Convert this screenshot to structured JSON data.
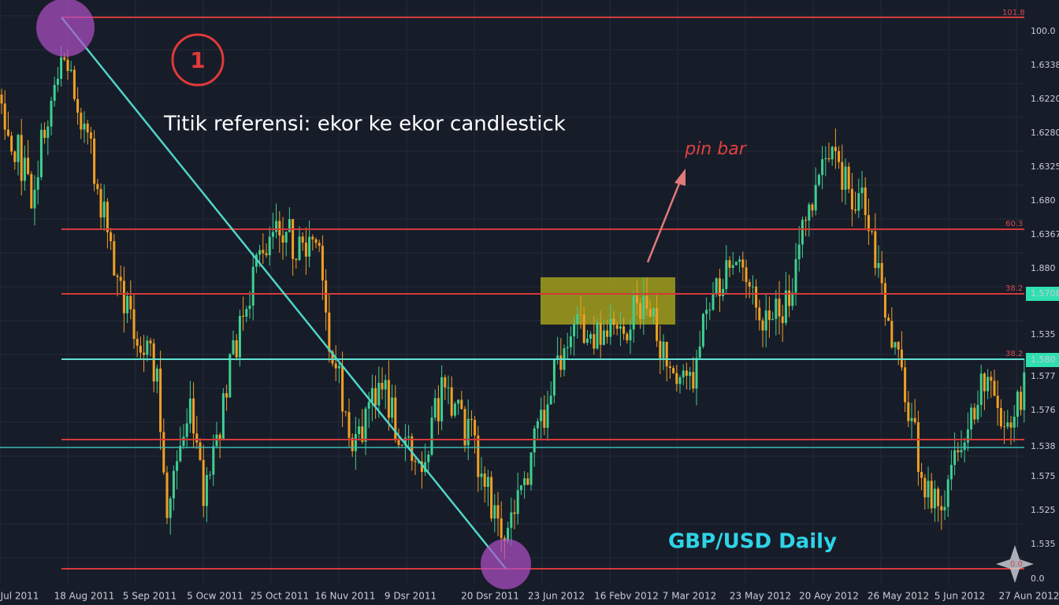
{
  "annotations": {
    "step": "1",
    "reference": "Titik referensi: ekor ke ekor candlestick",
    "pin_bar": "pin bar",
    "pair": "GBP/USD  Daily"
  },
  "price_labels": [
    "100.0",
    "1.6338",
    "1.6220",
    "1.6280",
    "1.6325",
    "1.680",
    "1.6367",
    "1.880",
    "1.5708",
    "1.535",
    "1.580",
    "1.577",
    "1.576",
    "1.538",
    "1.575",
    "1.525",
    "1.535",
    "0.0"
  ],
  "fib_labels": [
    "101.8",
    "60.3",
    "38.2",
    "38.2",
    "0.0"
  ],
  "dates": [
    "Jul 2011",
    "18 Aug 2011",
    "5 Sep 2011",
    "5 Ocw 2011",
    "25 Oct 2011",
    "16 Nuv 2011",
    "9 Dsr 2011",
    "20 Dsr 2011",
    "23 Jun 2012",
    "16 Febv 2012",
    "7 Mar 2012",
    "23 May 2012",
    "20 Aoy 2012",
    "26 May 2012",
    "5 Jun 2012",
    "27 Aun 2012"
  ]
}
